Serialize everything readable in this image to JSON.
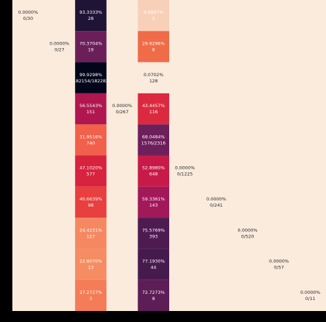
{
  "chart_data": {
    "type": "heatmap",
    "background": "#faebdd",
    "frame": "#000000",
    "cells": [
      {
        "row": 0,
        "col": 0,
        "value": 0.0,
        "value_label": "0.0000%",
        "count_label": "0/30",
        "color": "#faebdd"
      },
      {
        "row": 0,
        "col": 2,
        "value": 93.3333,
        "value_label": "93.3333%",
        "count_label": "28",
        "color": "#1f1435"
      },
      {
        "row": 0,
        "col": 4,
        "value": 6.6667,
        "value_label": "6.6667%",
        "count_label": "2",
        "color": "#f8d0b8"
      },
      {
        "row": 1,
        "col": 1,
        "value": 0.0,
        "value_label": "0.0000%",
        "count_label": "0/27",
        "color": "#faebdd"
      },
      {
        "row": 1,
        "col": 2,
        "value": 70.3704,
        "value_label": "70.3704%",
        "count_label": "19",
        "color": "#6b1f5a"
      },
      {
        "row": 1,
        "col": 4,
        "value": 29.6296,
        "value_label": "29.6296%",
        "count_label": "8",
        "color": "#f06b48"
      },
      {
        "row": 2,
        "col": 2,
        "value": 99.9298,
        "value_label": "99.9298%",
        "count_label": "182154/182282",
        "color": "#03051a"
      },
      {
        "row": 2,
        "col": 4,
        "value": 0.0702,
        "value_label": "0.0702%",
        "count_label": "128",
        "color": "#faebdd"
      },
      {
        "row": 3,
        "col": 2,
        "value": 56.5543,
        "value_label": "56.5543%",
        "count_label": "151",
        "color": "#b0174f"
      },
      {
        "row": 3,
        "col": 3,
        "value": 0.0,
        "value_label": "0.0000%",
        "count_label": "0/267",
        "color": "#faebdd"
      },
      {
        "row": 3,
        "col": 4,
        "value": 43.4457,
        "value_label": "43.4457%",
        "count_label": "116",
        "color": "#db2a3f"
      },
      {
        "row": 4,
        "col": 2,
        "value": 31.9516,
        "value_label": "31.9516%",
        "count_label": "740",
        "color": "#f0604a"
      },
      {
        "row": 4,
        "col": 4,
        "value": 68.0484,
        "value_label": "68.0484%",
        "count_label": "1576/2316",
        "color": "#6d1f5b"
      },
      {
        "row": 5,
        "col": 2,
        "value": 47.102,
        "value_label": "47.1020%",
        "count_label": "577",
        "color": "#d7233e"
      },
      {
        "row": 5,
        "col": 4,
        "value": 52.898,
        "value_label": "52.8980%",
        "count_label": "648",
        "color": "#c71a48"
      },
      {
        "row": 5,
        "col": 5,
        "value": 0.0,
        "value_label": "0.0000%",
        "count_label": "0/1225",
        "color": "#faebdd"
      },
      {
        "row": 6,
        "col": 2,
        "value": 40.6639,
        "value_label": "40.6639%",
        "count_label": "98",
        "color": "#e83f3f"
      },
      {
        "row": 6,
        "col": 4,
        "value": 59.3361,
        "value_label": "59.3361%",
        "count_label": "143",
        "color": "#a2195a"
      },
      {
        "row": 6,
        "col": 6,
        "value": 0.0,
        "value_label": "0.0000%",
        "count_label": "0/241",
        "color": "#faebdd"
      },
      {
        "row": 7,
        "col": 2,
        "value": 24.4231,
        "value_label": "24.4231%",
        "count_label": "127",
        "color": "#f58860"
      },
      {
        "row": 7,
        "col": 4,
        "value": 75.5769,
        "value_label": "75.5769%",
        "count_label": "393",
        "color": "#4e1b51"
      },
      {
        "row": 7,
        "col": 7,
        "value": 0.0,
        "value_label": "0.0000%",
        "count_label": "0/520",
        "color": "#faebdd"
      },
      {
        "row": 8,
        "col": 2,
        "value": 22.807,
        "value_label": "22.8070%",
        "count_label": "13",
        "color": "#f58c62"
      },
      {
        "row": 8,
        "col": 4,
        "value": 77.193,
        "value_label": "77.1930%",
        "count_label": "44",
        "color": "#471a4d"
      },
      {
        "row": 8,
        "col": 8,
        "value": 0.0,
        "value_label": "0.0000%",
        "count_label": "0/57",
        "color": "#faebdd"
      },
      {
        "row": 9,
        "col": 2,
        "value": 27.2727,
        "value_label": "27.2727%",
        "count_label": "3",
        "color": "#f47c57"
      },
      {
        "row": 9,
        "col": 4,
        "value": 72.7273,
        "value_label": "72.7273%",
        "count_label": "8",
        "color": "#5d1d56"
      },
      {
        "row": 9,
        "col": 9,
        "value": 0.0,
        "value_label": "0.0000%",
        "count_label": "0/11",
        "color": "#faebdd"
      }
    ]
  }
}
